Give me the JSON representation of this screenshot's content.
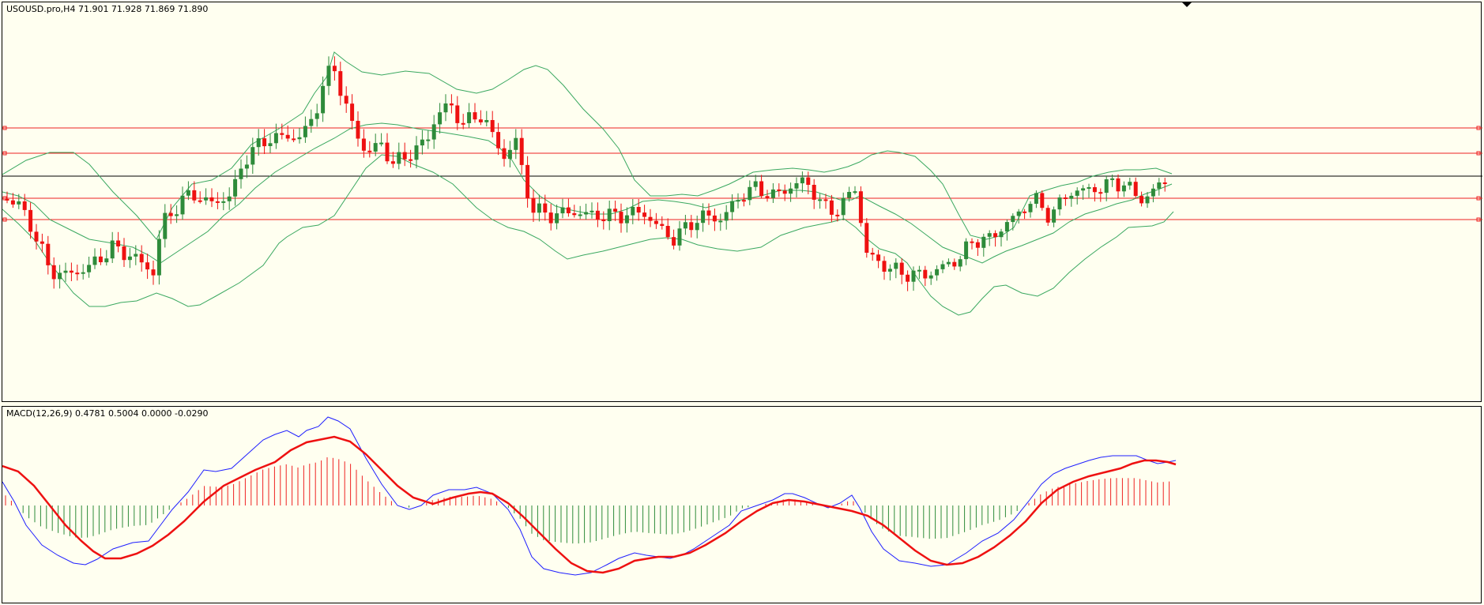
{
  "header": {
    "symbol_line": "USOUSD.pro,H4  71.901 71.928 71.869 71.890"
  },
  "macd": {
    "label": "MACD(12,26,9) 0.4781 0.5004 0.0000 -0.0290"
  },
  "colors": {
    "background": "#fffff0",
    "bull_candle": "#2e8b3a",
    "bear_candle": "#ee1111",
    "bollinger": "#3aa860",
    "level_line": "#ee2222",
    "current_line": "#000000",
    "macd_main": "#1f1fff",
    "macd_signal": "#ee1111",
    "hist_positive": "#ee2222",
    "hist_negative": "#2e8b3a"
  }
}
